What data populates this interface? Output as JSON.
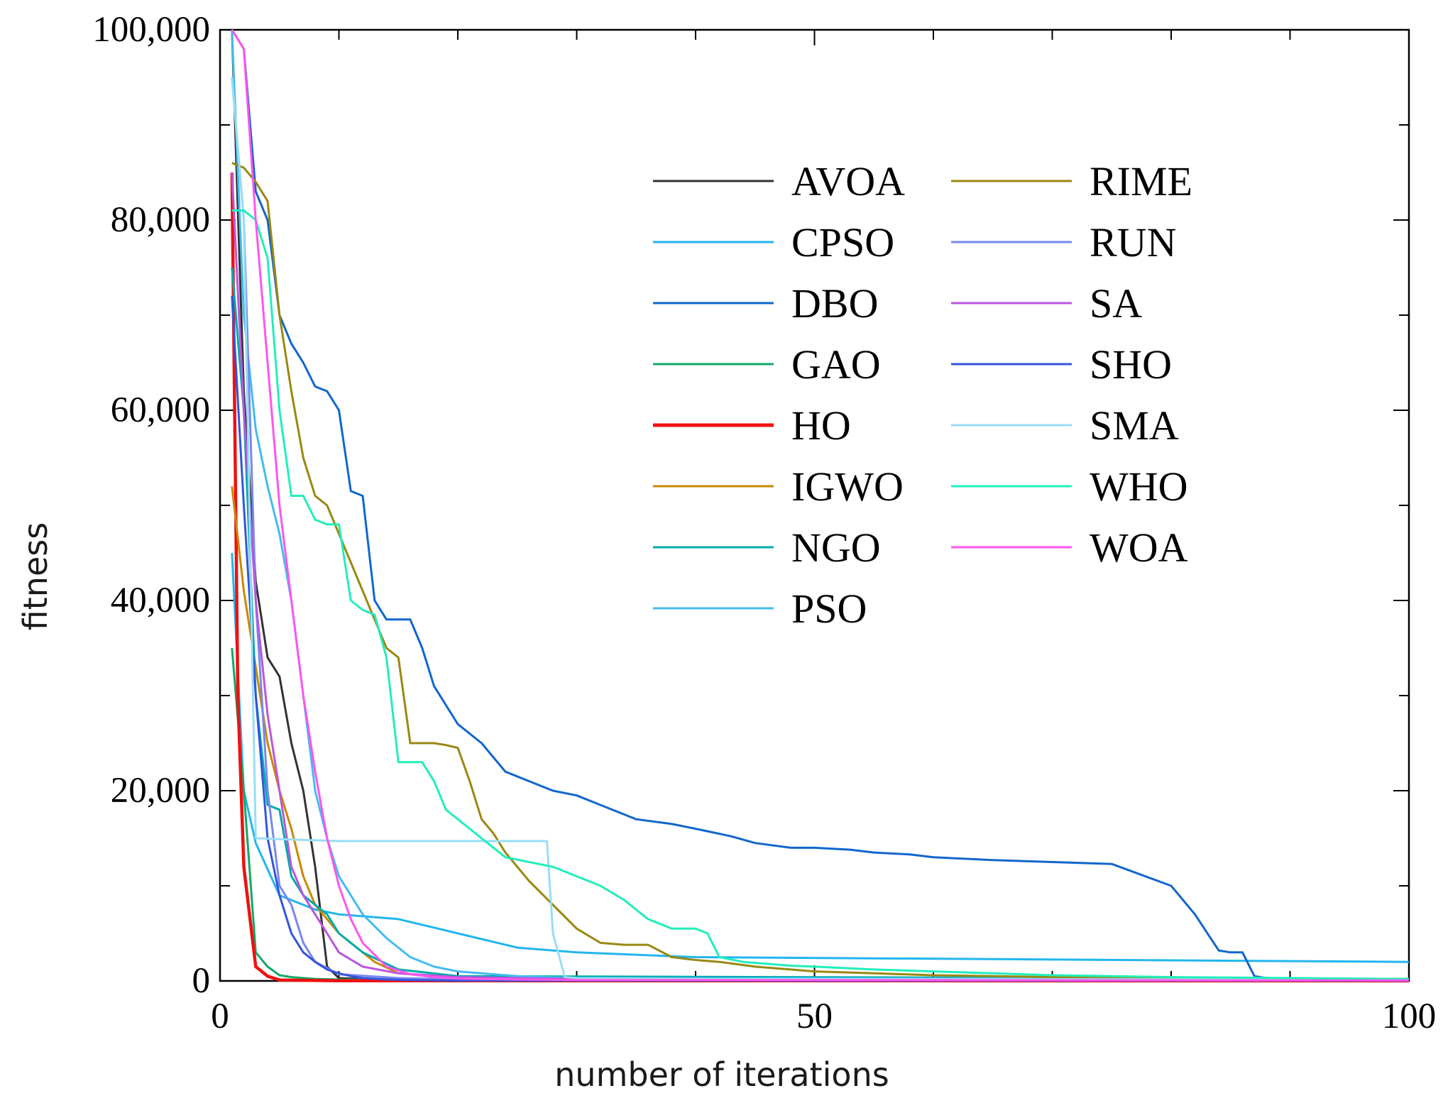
{
  "chart_data": {
    "type": "line",
    "title": "",
    "xlabel": "number of iterations",
    "ylabel": "fitness",
    "xlim": [
      0,
      100
    ],
    "ylim": [
      0,
      100000
    ],
    "x_ticks": [
      0,
      50,
      100
    ],
    "x_tick_labels": [
      "0",
      "50",
      "100"
    ],
    "y_ticks": [
      0,
      20000,
      40000,
      60000,
      80000,
      100000
    ],
    "y_tick_labels": [
      "0",
      "20,000",
      "40,000",
      "60,000",
      "80,000",
      "100,000"
    ],
    "legend_position": "top-right",
    "series": [
      {
        "name": "AVOA",
        "color": "#333333",
        "x": [
          1,
          2,
          3,
          4,
          5,
          6,
          7,
          8,
          9,
          10,
          12,
          15,
          20,
          100
        ],
        "y": [
          100000,
          62000,
          42000,
          34000,
          32000,
          25000,
          20000,
          12000,
          1500,
          300,
          200,
          150,
          100,
          80
        ]
      },
      {
        "name": "CPSO",
        "color": "#22b6ee",
        "x": [
          1,
          2,
          3,
          5,
          8,
          10,
          15,
          20,
          25,
          30,
          40,
          100
        ],
        "y": [
          45000,
          20000,
          14500,
          9000,
          7500,
          7000,
          6500,
          5000,
          3500,
          3000,
          2500,
          2000
        ]
      },
      {
        "name": "DBO",
        "color": "#1166cc",
        "x": [
          1,
          2,
          3,
          4,
          5,
          6,
          7,
          8,
          9,
          10,
          11,
          12,
          13,
          14,
          15,
          16,
          17,
          18,
          20,
          22,
          24,
          26,
          28,
          30,
          32,
          35,
          38,
          40,
          43,
          45,
          48,
          50,
          53,
          55,
          58,
          60,
          65,
          70,
          75,
          80,
          82,
          84,
          85,
          86,
          87,
          88,
          89,
          90,
          100
        ],
        "y": [
          100000,
          98000,
          83000,
          80000,
          70000,
          67000,
          65000,
          62500,
          62000,
          60000,
          51500,
          51000,
          40000,
          38000,
          38000,
          38000,
          35000,
          31000,
          27000,
          25000,
          22000,
          21000,
          20000,
          19500,
          18500,
          17000,
          16500,
          16000,
          15200,
          14500,
          14000,
          14000,
          13800,
          13500,
          13300,
          13000,
          12700,
          12500,
          12300,
          10000,
          7000,
          3200,
          3000,
          3000,
          500,
          300,
          200,
          150,
          100
        ]
      },
      {
        "name": "GAO",
        "color": "#11a866",
        "x": [
          1,
          2,
          3,
          4,
          5,
          6,
          8,
          10,
          15,
          100
        ],
        "y": [
          35000,
          20000,
          3000,
          1500,
          600,
          400,
          200,
          150,
          100,
          80
        ]
      },
      {
        "name": "HO",
        "color": "#ee1111",
        "x": [
          1,
          1.5,
          2,
          3,
          4,
          5,
          10,
          100
        ],
        "y": [
          85000,
          30000,
          12000,
          1500,
          500,
          100,
          20,
          10
        ]
      },
      {
        "name": "IGWO",
        "color": "#cc8800",
        "x": [
          1,
          2,
          3,
          4,
          5,
          6,
          7,
          8,
          9,
          10,
          11,
          12,
          13,
          15,
          20,
          100
        ],
        "y": [
          52000,
          41000,
          33000,
          25000,
          20000,
          16000,
          11000,
          8000,
          6500,
          5000,
          4000,
          3000,
          2000,
          800,
          300,
          100
        ]
      },
      {
        "name": "NGO",
        "color": "#00aaaa",
        "x": [
          1,
          2,
          3,
          4,
          5,
          6,
          7,
          8,
          9,
          10,
          12,
          15,
          20,
          100
        ],
        "y": [
          75000,
          60000,
          30000,
          18500,
          18000,
          11000,
          9000,
          8000,
          7000,
          5000,
          3000,
          1200,
          500,
          200
        ]
      },
      {
        "name": "PSO",
        "color": "#44bbee",
        "x": [
          1,
          2,
          3,
          4,
          5,
          6,
          7,
          8,
          9,
          10,
          11,
          12,
          14,
          16,
          18,
          20,
          25,
          30,
          100
        ],
        "y": [
          100000,
          70000,
          58000,
          52000,
          47000,
          40000,
          30000,
          20000,
          15000,
          11000,
          9000,
          7000,
          4500,
          2500,
          1500,
          1000,
          500,
          300,
          200
        ]
      },
      {
        "name": "RIME",
        "color": "#998811",
        "x": [
          1,
          2,
          3,
          4,
          5,
          6,
          7,
          8,
          9,
          10,
          11,
          12,
          13,
          14,
          15,
          16,
          17,
          18,
          19,
          20,
          21,
          22,
          23,
          24,
          25,
          26,
          28,
          30,
          32,
          34,
          36,
          38,
          40,
          42,
          45,
          48,
          50,
          55,
          60,
          70,
          80,
          90,
          100
        ],
        "y": [
          86000,
          85500,
          84000,
          82000,
          70000,
          62000,
          55000,
          51000,
          50000,
          47000,
          44000,
          41000,
          38000,
          35000,
          34000,
          25000,
          25000,
          25000,
          24800,
          24500,
          21000,
          17000,
          15500,
          13500,
          12000,
          10500,
          8000,
          5500,
          4000,
          3800,
          3800,
          2500,
          2200,
          2000,
          1500,
          1200,
          1000,
          800,
          600,
          400,
          300,
          250,
          200
        ]
      },
      {
        "name": "RUN",
        "color": "#7788ee",
        "x": [
          1,
          2,
          3,
          4,
          5,
          6,
          7,
          8,
          10,
          15,
          20,
          100
        ],
        "y": [
          95000,
          80000,
          40000,
          20000,
          10000,
          8000,
          4000,
          2000,
          700,
          300,
          150,
          50
        ]
      },
      {
        "name": "SA",
        "color": "#bb55dd",
        "x": [
          1,
          2,
          3,
          4,
          5,
          6,
          7,
          8,
          9,
          10,
          12,
          15,
          20,
          30,
          100
        ],
        "y": [
          85000,
          60000,
          40000,
          28000,
          20000,
          12000,
          9000,
          7000,
          5000,
          3000,
          1500,
          800,
          400,
          200,
          100
        ]
      },
      {
        "name": "SHO",
        "color": "#3355dd",
        "x": [
          1,
          2,
          3,
          4,
          5,
          6,
          7,
          8,
          9,
          10,
          11,
          12,
          14,
          16,
          20,
          100
        ],
        "y": [
          72000,
          50000,
          30000,
          15000,
          9000,
          5000,
          3000,
          2000,
          1200,
          800,
          500,
          300,
          150,
          80,
          40,
          20
        ]
      },
      {
        "name": "SMA",
        "color": "#99ddf5",
        "x": [
          1,
          2,
          3,
          10,
          20,
          27,
          27.5,
          28,
          29,
          30,
          40,
          100
        ],
        "y": [
          95000,
          80000,
          15000,
          14700,
          14700,
          14700,
          14700,
          5000,
          400,
          300,
          200,
          150
        ]
      },
      {
        "name": "WHO",
        "color": "#22eebb",
        "x": [
          1,
          2,
          3,
          4,
          5,
          6,
          7,
          8,
          9,
          10,
          11,
          12,
          13,
          14,
          15,
          16,
          17,
          18,
          19,
          20,
          22,
          24,
          26,
          28,
          30,
          32,
          34,
          36,
          38,
          40,
          41,
          42,
          44,
          46,
          48,
          50,
          55,
          60,
          65,
          70,
          80,
          100
        ],
        "y": [
          81000,
          81000,
          80000,
          76000,
          60000,
          51000,
          51000,
          48500,
          48000,
          48000,
          40000,
          39000,
          38500,
          34000,
          23000,
          23000,
          23000,
          21000,
          18000,
          17000,
          15000,
          13000,
          12500,
          12000,
          11000,
          10000,
          8500,
          6500,
          5500,
          5500,
          5000,
          2500,
          2000,
          1800,
          1600,
          1500,
          1200,
          1000,
          800,
          600,
          400,
          200
        ]
      },
      {
        "name": "WOA",
        "color": "#ff55ee",
        "x": [
          1,
          2,
          3,
          4,
          5,
          6,
          7,
          8,
          9,
          10,
          11,
          12,
          14,
          16,
          18,
          20,
          25,
          30,
          100
        ],
        "y": [
          100000,
          98000,
          80000,
          65000,
          50000,
          40000,
          30000,
          22000,
          15000,
          10000,
          6500,
          4000,
          1500,
          700,
          400,
          250,
          150,
          100,
          50
        ]
      }
    ]
  }
}
